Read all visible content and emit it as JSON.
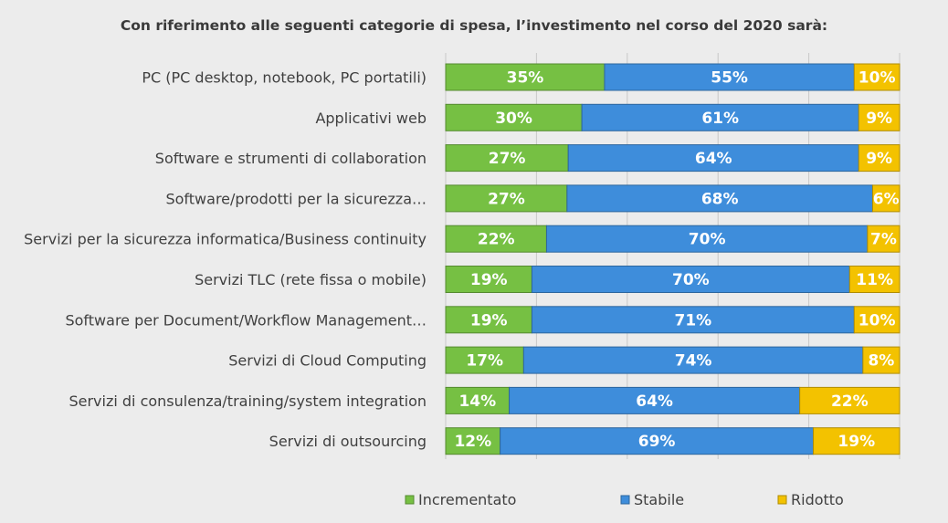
{
  "chart_data": {
    "type": "bar",
    "orientation": "horizontal",
    "stacked": true,
    "percent_scale": true,
    "title": "Con riferimento alle seguenti categorie di spesa, l’investimento nel corso del 2020 sarà:",
    "categories": [
      "PC (PC desktop, notebook, PC portatili)",
      "Applicativi web",
      "Software e strumenti di collaboration",
      "Software/prodotti per la sicurezza…",
      "Servizi per la sicurezza informatica/Business continuity",
      "Servizi TLC (rete fissa o mobile)",
      "Software per Document/Workflow Management…",
      "Servizi di Cloud Computing",
      "Servizi di consulenza/training/system integration",
      "Servizi di outsourcing"
    ],
    "series": [
      {
        "name": "Incrementato",
        "color": "#76c043",
        "values": [
          35,
          30,
          27,
          27,
          22,
          19,
          19,
          17,
          14,
          12
        ]
      },
      {
        "name": "Stabile",
        "color": "#3e8ddb",
        "values": [
          55,
          61,
          64,
          68,
          70,
          70,
          71,
          74,
          64,
          69
        ]
      },
      {
        "name": "Ridotto",
        "color": "#f3c200",
        "values": [
          10,
          9,
          9,
          6,
          7,
          11,
          10,
          8,
          22,
          19
        ]
      }
    ],
    "data_labels": [
      [
        "35%",
        "30%",
        "27%",
        "27%",
        "22%",
        "19%",
        "19%",
        "17%",
        "14%",
        "12%"
      ],
      [
        "55%",
        "61%",
        "64%",
        "68%",
        "70%",
        "70%",
        "71%",
        "74%",
        "64%",
        "69%"
      ],
      [
        "10%",
        "9%",
        "9%",
        "6%",
        "7%",
        "11%",
        "10%",
        "8%",
        "22%",
        "19%"
      ]
    ],
    "legend_position": "bottom",
    "grid": true
  }
}
